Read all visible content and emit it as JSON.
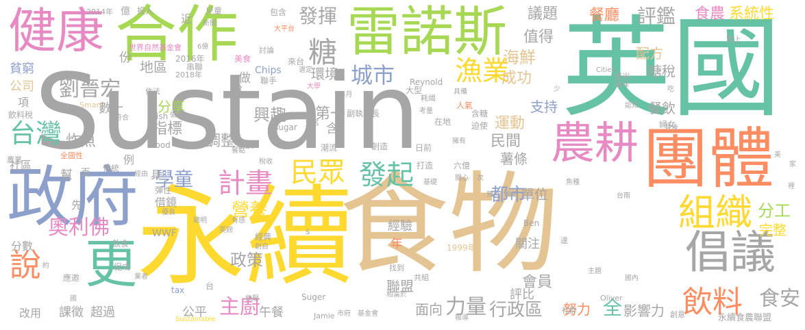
{
  "words": [
    {
      "text": "Sustain",
      "color": "#a6a6a6"
    },
    {
      "text": "食物",
      "color": "#e5c494"
    },
    {
      "text": "永續",
      "color": "#ffd92f"
    },
    {
      "text": "英國",
      "color": "#66c2a5"
    },
    {
      "text": "合作",
      "color": "#a6d854"
    },
    {
      "text": "團體",
      "color": "#fc8d62"
    },
    {
      "text": "雷諾斯",
      "color": "#a6d854"
    },
    {
      "text": "政府",
      "color": "#8da0cb"
    },
    {
      "text": "健康",
      "color": "#e78ac3"
    },
    {
      "text": "農耕",
      "color": "#e78ac3"
    },
    {
      "text": "倡議",
      "color": "#a6a6a6"
    },
    {
      "text": "組織",
      "color": "#ffd92f"
    },
    {
      "text": "更",
      "color": "#66c2a5"
    },
    {
      "text": "說",
      "color": "#fc8d62"
    },
    {
      "text": "計畫",
      "color": "#e78ac3"
    },
    {
      "text": "民眾",
      "color": "#ffd92f"
    },
    {
      "text": "發起",
      "color": "#66c2a5"
    },
    {
      "text": "漁業",
      "color": "#ffd92f"
    },
    {
      "text": "城市",
      "color": "#8da0cb"
    },
    {
      "text": "糖",
      "color": "#a6a6a6"
    },
    {
      "text": "飲料",
      "color": "#fc8d62"
    },
    {
      "text": "台灣",
      "color": "#66c2a5"
    },
    {
      "text": "奧利佛",
      "color": "#e78ac3"
    },
    {
      "text": "劉晉宏",
      "color": "#a6a6a6"
    },
    {
      "text": "學童",
      "color": "#8da0cb"
    },
    {
      "text": "主廚",
      "color": "#e78ac3"
    },
    {
      "text": "力量",
      "color": "#a6a6a6"
    },
    {
      "text": "發揮",
      "color": "#a6a6a6"
    },
    {
      "text": "評鑑",
      "color": "#a6a6a6"
    },
    {
      "text": "食安",
      "color": "#a6a6a6"
    },
    {
      "text": "都市",
      "color": "#8da0cb"
    },
    {
      "text": "營養",
      "color": "#ffd92f"
    },
    {
      "text": "政策",
      "color": "#a6a6a6"
    },
    {
      "text": "行政區",
      "color": "#a6a6a6"
    },
    {
      "text": "餐廳",
      "color": "#fc8d62"
    },
    {
      "text": "食農",
      "color": "#e78ac3"
    },
    {
      "text": "系統性",
      "color": "#ffd92f"
    },
    {
      "text": "議題",
      "color": "#a6a6a6"
    },
    {
      "text": "海鮮",
      "color": "#e5c494"
    },
    {
      "text": "值得",
      "color": "#a6a6a6"
    },
    {
      "text": "成功",
      "color": "#e5c494"
    },
    {
      "text": "配方",
      "color": "#e5c494"
    },
    {
      "text": "糖稅",
      "color": "#a6a6a6"
    },
    {
      "text": "分工",
      "color": "#a6d854"
    },
    {
      "text": "完整",
      "color": "#ffd92f"
    },
    {
      "text": "興趣",
      "color": "#a6a6a6"
    },
    {
      "text": "第一",
      "color": "#a6a6a6"
    },
    {
      "text": "運動",
      "color": "#e5c494"
    },
    {
      "text": "民間",
      "color": "#a6a6a6"
    },
    {
      "text": "薯條",
      "color": "#a6a6a6"
    },
    {
      "text": "單位",
      "color": "#a6a6a6"
    },
    {
      "text": "支持",
      "color": "#8da0cb"
    },
    {
      "text": "餐飲",
      "color": "#a6a6a6"
    },
    {
      "text": "指標",
      "color": "#a6a6a6"
    },
    {
      "text": "調整",
      "color": "#a6a6a6"
    },
    {
      "text": "分享",
      "color": "#a6d854"
    },
    {
      "text": "環境",
      "color": "#a6a6a6"
    },
    {
      "text": "地區",
      "color": "#a6a6a6"
    },
    {
      "text": "炸魚",
      "color": "#a6a6a6"
    },
    {
      "text": "數十",
      "color": "#a6a6a6"
    },
    {
      "text": "會員",
      "color": "#a6a6a6"
    },
    {
      "text": "面向",
      "color": "#a6a6a6"
    },
    {
      "text": "努力",
      "color": "#fc8d62"
    },
    {
      "text": "全",
      "color": "#66c2a5"
    },
    {
      "text": "影響力",
      "color": "#a6a6a6"
    },
    {
      "text": "聯盟",
      "color": "#a6a6a6"
    },
    {
      "text": "評比",
      "color": "#a6a6a6"
    },
    {
      "text": "關注",
      "color": "#a6a6a6"
    },
    {
      "text": "經驗",
      "color": "#a6a6a6"
    },
    {
      "text": "年",
      "color": "#fc8d62"
    },
    {
      "text": "午餐",
      "color": "#a6a6a6"
    },
    {
      "text": "公平",
      "color": "#a6a6a6"
    },
    {
      "text": "課徵",
      "color": "#a6a6a6"
    },
    {
      "text": "超過",
      "color": "#a6a6a6"
    },
    {
      "text": "改用",
      "color": "#a6a6a6"
    },
    {
      "text": "分數",
      "color": "#a6a6a6"
    },
    {
      "text": "貧窮",
      "color": "#8da0cb"
    },
    {
      "text": "公司",
      "color": "#e5c494"
    },
    {
      "text": "項",
      "color": "#a6a6a6"
    },
    {
      "text": "飲料稅",
      "color": "#a6a6a6"
    },
    {
      "text": "社區",
      "color": "#a6a6a6"
    },
    {
      "text": "幫",
      "color": "#a6a6a6"
    },
    {
      "text": "先",
      "color": "#a6a6a6"
    },
    {
      "text": "例",
      "color": "#a6a6a6"
    },
    {
      "text": "具",
      "color": "#a6a6a6"
    },
    {
      "text": "借鏡",
      "color": "#a6a6a6"
    },
    {
      "text": "做",
      "color": "#a6a6a6"
    },
    {
      "text": "稅",
      "color": "#a6a6a6"
    },
    {
      "text": "含",
      "color": "#a6a6a6"
    },
    {
      "text": "份",
      "color": "#a6a6a6"
    },
    {
      "text": "近",
      "color": "#a6a6a6"
    },
    {
      "text": "億",
      "color": "#a6a6a6"
    },
    {
      "text": "投入",
      "color": "#a6a6a6"
    },
    {
      "text": "兒童",
      "color": "#a6a6a6"
    },
    {
      "text": "包含",
      "color": "#a6a6a6"
    },
    {
      "text": "2014年",
      "color": "#a6a6a6"
    },
    {
      "text": "新聞",
      "color": "#a6a6a6"
    },
    {
      "text": "大平台",
      "color": "#fc8d62"
    },
    {
      "text": "世界自然基金會",
      "color": "#e78ac3"
    },
    {
      "text": "6億",
      "color": "#a6a6a6"
    },
    {
      "text": "2016年",
      "color": "#a6a6a6"
    },
    {
      "text": "串聯",
      "color": "#a6a6a6"
    },
    {
      "text": "2018年",
      "color": "#a6a6a6"
    },
    {
      "text": "美食",
      "color": "#e78ac3"
    },
    {
      "text": "討論",
      "color": "#a6a6a6"
    },
    {
      "text": "Chips",
      "color": "#8da0cb"
    },
    {
      "text": "聯手",
      "color": "#a6a6a6"
    },
    {
      "text": "來台",
      "color": "#a6a6a6"
    },
    {
      "text": "選定",
      "color": "#a6a6a6"
    },
    {
      "text": "Reynold",
      "color": "#a6a6a6"
    },
    {
      "text": "大型",
      "color": "#a6a6a6"
    },
    {
      "text": "大學",
      "color": "#e78ac3"
    },
    {
      "text": "4月",
      "color": "#a6a6a6"
    },
    {
      "text": "具備",
      "color": "#a6a6a6"
    },
    {
      "text": "耗竭",
      "color": "#a6a6a6"
    },
    {
      "text": "副執行長",
      "color": "#a6a6a6"
    },
    {
      "text": "考量",
      "color": "#a6a6a6"
    },
    {
      "text": "人氣",
      "color": "#fc8d62"
    },
    {
      "text": "在地",
      "color": "#a6a6a6"
    },
    {
      "text": "含糖",
      "color": "#a6a6a6"
    },
    {
      "text": "迫使",
      "color": "#a6a6a6"
    },
    {
      "text": "作法",
      "color": "#a6a6a6"
    },
    {
      "text": "Smart",
      "color": "#e5c494"
    },
    {
      "text": "符合",
      "color": "#a6a6a6"
    },
    {
      "text": "Fish",
      "color": "#a6a6a6"
    },
    {
      "text": "做法",
      "color": "#a6a6a6"
    },
    {
      "text": "Food",
      "color": "#a6a6a6"
    },
    {
      "text": "秘訣",
      "color": "#a6a6a6"
    },
    {
      "text": "sugar",
      "color": "#a6a6a6"
    },
    {
      "text": "知名",
      "color": "#a6a6a6"
    },
    {
      "text": "潮流",
      "color": "#a6a6a6"
    },
    {
      "text": "創造",
      "color": "#a6a6a6"
    },
    {
      "text": "日前",
      "color": "#a6a6a6"
    },
    {
      "text": "擁有",
      "color": "#a6a6a6"
    },
    {
      "text": "打造",
      "color": "#a6a6a6"
    },
    {
      "text": "六億",
      "color": "#a6a6a6"
    },
    {
      "text": "基礎",
      "color": "#a6a6a6"
    },
    {
      "text": "關心",
      "color": "#a6a6a6"
    },
    {
      "text": "次",
      "color": "#a6a6a6"
    },
    {
      "text": "預計",
      "color": "#a6a6a6"
    },
    {
      "text": "團結",
      "color": "#a6a6a6"
    },
    {
      "text": "魚種",
      "color": "#a6a6a6"
    },
    {
      "text": "台南",
      "color": "#a6a6a6"
    },
    {
      "text": "餐點",
      "color": "#a6a6a6"
    },
    {
      "text": "稅收",
      "color": "#a6a6a6"
    },
    {
      "text": "農業",
      "color": "#a6a6a6"
    },
    {
      "text": "全國性",
      "color": "#fc8d62"
    },
    {
      "text": "傳統",
      "color": "#a6a6a6"
    },
    {
      "text": "百",
      "color": "#a6a6a6"
    },
    {
      "text": "經由",
      "color": "#a6a6a6"
    },
    {
      "text": "彈性",
      "color": "#a6a6a6"
    },
    {
      "text": "優良",
      "color": "#a6a6a6"
    },
    {
      "text": "聰明",
      "color": "#a6a6a6"
    },
    {
      "text": "有感",
      "color": "#a6a6a6"
    },
    {
      "text": "WWF",
      "color": "#a6a6a6"
    },
    {
      "text": "英鎊",
      "color": "#a6a6a6"
    },
    {
      "text": "經典",
      "color": "#a6a6a6"
    },
    {
      "text": "創自",
      "color": "#a6a6a6"
    },
    {
      "text": "s",
      "color": "#a6a6a6"
    },
    {
      "text": "Ben",
      "color": "#a6a6a6"
    },
    {
      "text": "1999年",
      "color": "#e5c494"
    },
    {
      "text": "飲食",
      "color": "#a6a6a6"
    },
    {
      "text": "促成",
      "color": "#a6a6a6"
    },
    {
      "text": "應邀",
      "color": "#a6a6a6"
    },
    {
      "text": "約",
      "color": "#a6a6a6"
    },
    {
      "text": "業者",
      "color": "#a6a6a6"
    },
    {
      "text": "國",
      "color": "#a6a6a6"
    },
    {
      "text": "tax",
      "color": "#8da0cb"
    },
    {
      "text": "施壓",
      "color": "#a6a6a6"
    },
    {
      "text": "Suger",
      "color": "#a6a6a6"
    },
    {
      "text": "台",
      "color": "#a6a6a6"
    },
    {
      "text": "Sustainable",
      "color": "#ffd92f"
    },
    {
      "text": "Jamie",
      "color": "#a6a6a6"
    },
    {
      "text": "市府",
      "color": "#a6a6a6"
    },
    {
      "text": "基金會",
      "color": "#a6a6a6"
    },
    {
      "text": "找到",
      "color": "#a6a6a6"
    },
    {
      "text": "共組",
      "color": "#a6a6a6"
    },
    {
      "text": "相當於",
      "color": "#a6a6a6"
    },
    {
      "text": "報導",
      "color": "#a6a6a6"
    },
    {
      "text": "達",
      "color": "#a6a6a6"
    },
    {
      "text": "主題",
      "color": "#a6a6a6"
    },
    {
      "text": "社群",
      "color": "#a6a6a6"
    },
    {
      "text": "國內",
      "color": "#a6a6a6"
    },
    {
      "text": "Oliver",
      "color": "#a6a6a6"
    },
    {
      "text": "創意",
      "color": "#a6a6a6"
    },
    {
      "text": "永續食農聯盟",
      "color": "#a6a6a6"
    },
    {
      "text": "傑米",
      "color": "#a6a6a6"
    },
    {
      "text": "Cities",
      "color": "#a6a6a6"
    },
    {
      "text": "動保",
      "color": "#a6a6a6"
    },
    {
      "text": "少",
      "color": "#a6a6a6"
    },
    {
      "text": "吃",
      "color": "#a6a6a6"
    },
    {
      "text": "認知",
      "color": "#a6a6a6"
    },
    {
      "text": "婦女",
      "color": "#a6a6a6"
    },
    {
      "text": "背後",
      "color": "#a6a6a6"
    },
    {
      "text": "跟上",
      "color": "#a6a6a6"
    },
    {
      "text": "家",
      "color": "#a6a6a6"
    },
    {
      "text": "美",
      "color": "#a6a6a6"
    },
    {
      "text": "裡",
      "color": "#a6a6a6"
    }
  ]
}
